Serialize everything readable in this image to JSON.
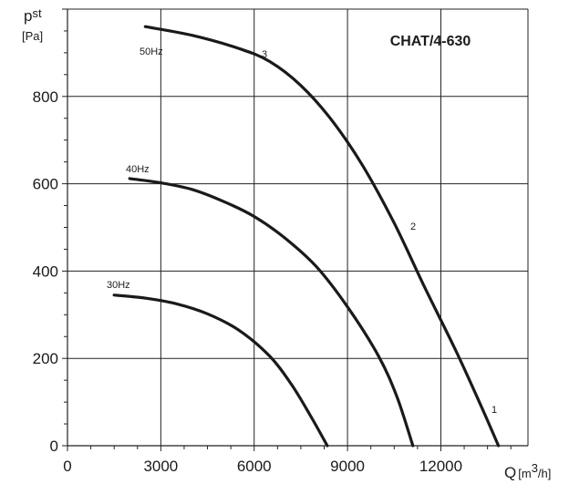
{
  "chart_data": {
    "type": "line",
    "title": "CHAT/4-630",
    "xlabel": {
      "symbol": "Q",
      "unit_pre": "[m",
      "unit_sup": "3",
      "unit_post": "/h]"
    },
    "ylabel": {
      "symbol": "p",
      "subscript": "st",
      "unit": "[Pa]"
    },
    "xlim": [
      0,
      14800
    ],
    "ylim": [
      0,
      1000
    ],
    "x_ticks": [
      0,
      3000,
      6000,
      9000,
      12000
    ],
    "x_tick_labels": [
      "0",
      "3000",
      "6000",
      "9000",
      "12000"
    ],
    "y_ticks": [
      0,
      200,
      400,
      600,
      800
    ],
    "y_tick_labels": [
      "0",
      "200",
      "400",
      "600",
      "800"
    ],
    "grid": true,
    "series": [
      {
        "name": "50Hz",
        "points": [
          [
            2500,
            960
          ],
          [
            4000,
            940
          ],
          [
            5500,
            910
          ],
          [
            6500,
            880
          ],
          [
            7500,
            825
          ],
          [
            8500,
            745
          ],
          [
            9500,
            640
          ],
          [
            10500,
            510
          ],
          [
            11500,
            360
          ],
          [
            12500,
            215
          ],
          [
            13300,
            90
          ],
          [
            13850,
            0
          ]
        ]
      },
      {
        "name": "40Hz",
        "points": [
          [
            2000,
            612
          ],
          [
            3000,
            602
          ],
          [
            4000,
            587
          ],
          [
            5000,
            560
          ],
          [
            6000,
            525
          ],
          [
            7000,
            475
          ],
          [
            8000,
            410
          ],
          [
            9000,
            318
          ],
          [
            10000,
            205
          ],
          [
            10600,
            110
          ],
          [
            11100,
            0
          ]
        ]
      },
      {
        "name": "30Hz",
        "points": [
          [
            1500,
            345
          ],
          [
            2500,
            338
          ],
          [
            3500,
            325
          ],
          [
            4500,
            302
          ],
          [
            5500,
            265
          ],
          [
            6500,
            205
          ],
          [
            7200,
            140
          ],
          [
            7800,
            70
          ],
          [
            8350,
            0
          ]
        ]
      }
    ],
    "annotations": [
      "1",
      "2",
      "3"
    ]
  }
}
